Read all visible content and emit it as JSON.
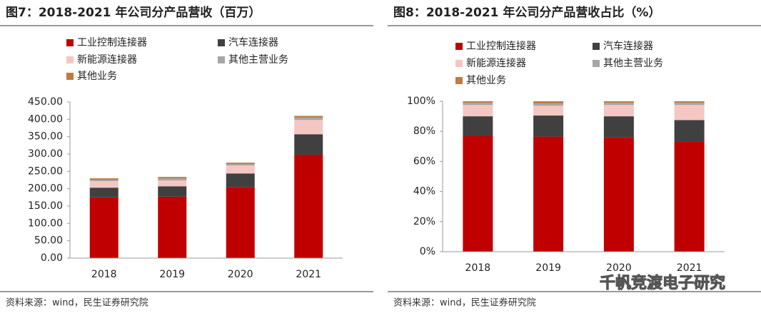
{
  "chart_data": [
    {
      "type": "stacked_bar",
      "title": "图7：2018-2021 年公司分产品营收（百万）",
      "source": "资料来源：wind，民生证券研究院",
      "categories": [
        "2018",
        "2019",
        "2020",
        "2021"
      ],
      "series": [
        {
          "name": "工业控制连接器",
          "color": "#c00000",
          "values": [
            175,
            177,
            205,
            298
          ]
        },
        {
          "name": "汽车连接器",
          "color": "#404040",
          "values": [
            28,
            30,
            39,
            59
          ]
        },
        {
          "name": "新能源连接器",
          "color": "#f4c7c3",
          "values": [
            19,
            17,
            23,
            41
          ]
        },
        {
          "name": "其他主营业务",
          "color": "#a6a6a6",
          "values": [
            4,
            6,
            4,
            7
          ]
        },
        {
          "name": "其他业务",
          "color": "#c07b42",
          "values": [
            4,
            4,
            4,
            5
          ]
        }
      ],
      "ylim": [
        0,
        450
      ],
      "yticks": [
        {
          "value": 0,
          "label": "0.00"
        },
        {
          "value": 50,
          "label": "50.00"
        },
        {
          "value": 100,
          "label": "100.00"
        },
        {
          "value": 150,
          "label": "150.00"
        },
        {
          "value": 200,
          "label": "200.00"
        },
        {
          "value": 250,
          "label": "250.00"
        },
        {
          "value": 300,
          "label": "300.00"
        },
        {
          "value": 350,
          "label": "350.00"
        },
        {
          "value": 400,
          "label": "400.00"
        },
        {
          "value": 450,
          "label": "450.00"
        }
      ]
    },
    {
      "type": "stacked_bar",
      "title": "图8：2018-2021 年公司分产品营收占比（%）",
      "source": "资料来源：wind，民生证券研究院",
      "categories": [
        "2018",
        "2019",
        "2020",
        "2021"
      ],
      "series": [
        {
          "name": "工业控制连接器",
          "color": "#c00000",
          "values": [
            77,
            76.5,
            76,
            73
          ]
        },
        {
          "name": "汽车连接器",
          "color": "#404040",
          "values": [
            13,
            14,
            14,
            14.5
          ]
        },
        {
          "name": "新能源连接器",
          "color": "#f4c7c3",
          "values": [
            7.5,
            6.5,
            7.5,
            10
          ]
        },
        {
          "name": "其他主营业务",
          "color": "#a6a6a6",
          "values": [
            1.5,
            1.5,
            1.5,
            1.5
          ]
        },
        {
          "name": "其他业务",
          "color": "#c07b42",
          "values": [
            1,
            1.5,
            1,
            1
          ]
        }
      ],
      "ylim": [
        0,
        100
      ],
      "yticks": [
        {
          "value": 0,
          "label": "0%"
        },
        {
          "value": 20,
          "label": "20%"
        },
        {
          "value": 40,
          "label": "40%"
        },
        {
          "value": 60,
          "label": "60%"
        },
        {
          "value": 80,
          "label": "80%"
        },
        {
          "value": 100,
          "label": "100%"
        }
      ]
    }
  ],
  "watermark": "千帆竞渡电子研究"
}
